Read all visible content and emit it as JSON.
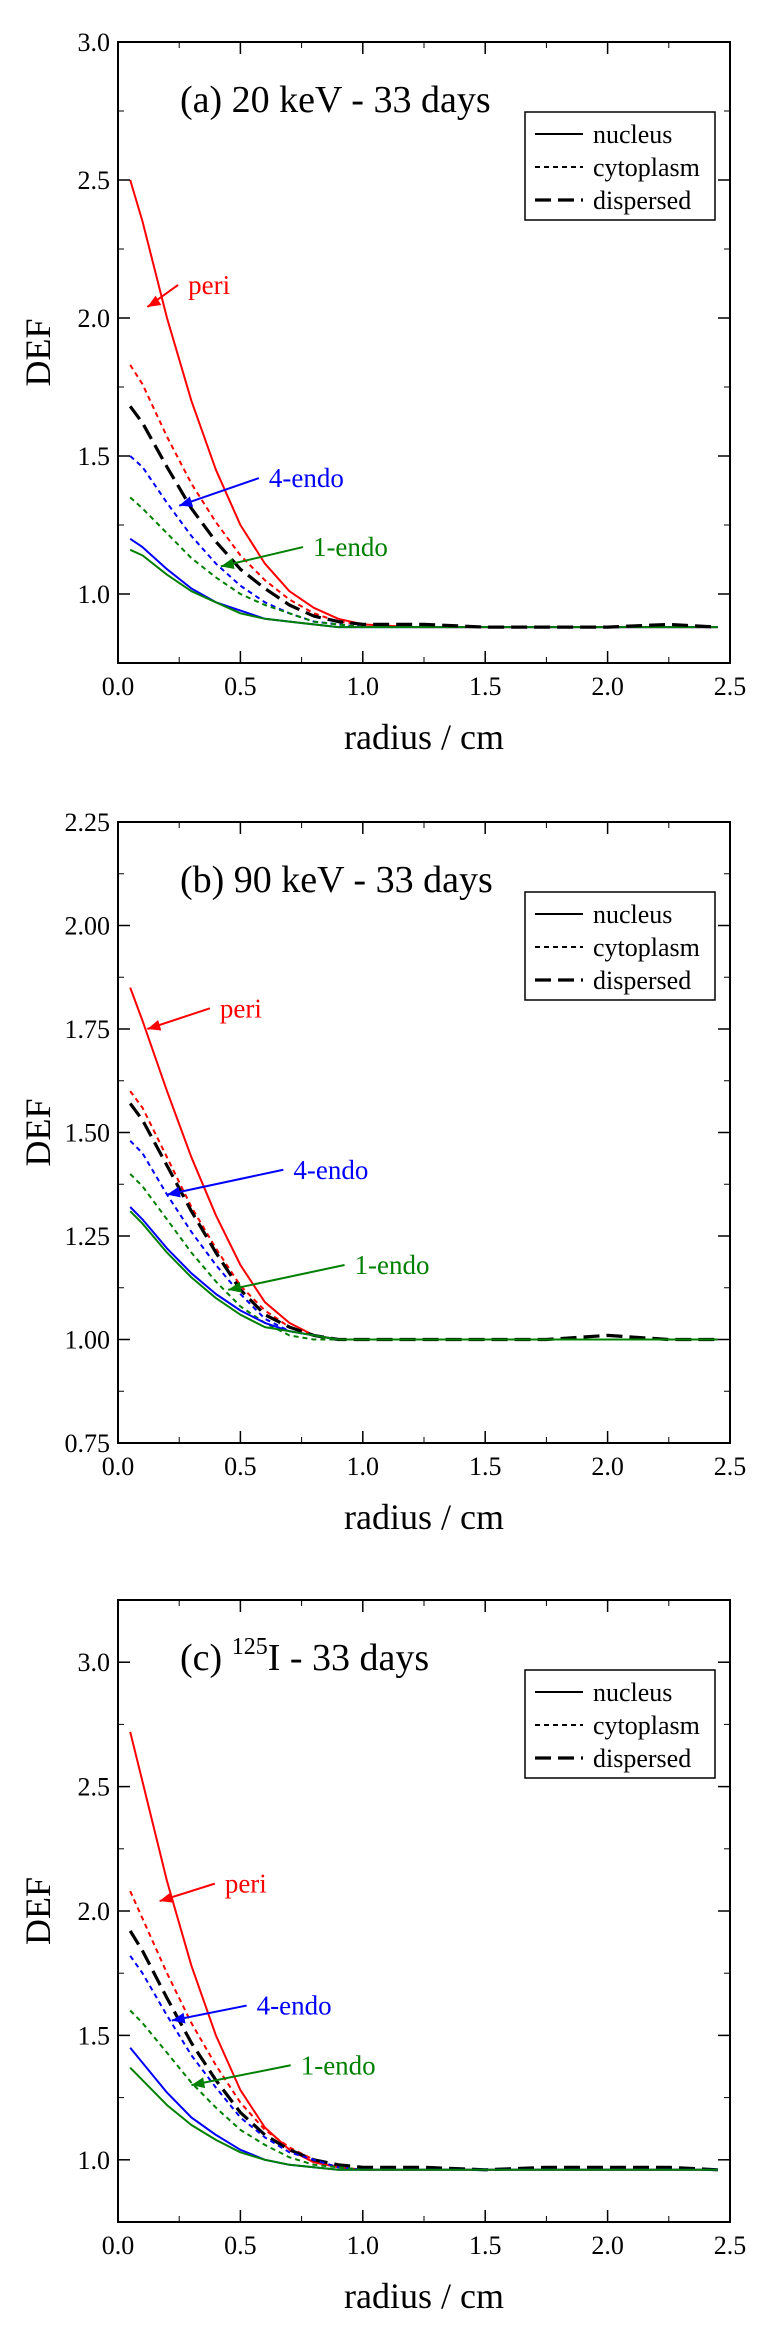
{
  "colors": {
    "peri": "#ff0000",
    "endo4": "#0000ff",
    "endo1": "#008000",
    "dispersed": "#000000",
    "frame": "#000000",
    "background": "#ffffff"
  },
  "chart_data": [
    {
      "type": "line",
      "title": "(a) 20 keV - 33 days",
      "title_prefix": "",
      "title_sup": "",
      "title_suffix": "",
      "xlabel": "radius / cm",
      "ylabel": "DEF",
      "xlim": [
        0,
        2.5
      ],
      "ylim": [
        0.75,
        3.0
      ],
      "xticks": [
        "0.0",
        "0.5",
        "1.0",
        "1.5",
        "2.0",
        "2.5"
      ],
      "yticks": [
        "1.0",
        "1.5",
        "2.0",
        "2.5",
        "3.0"
      ],
      "legend": {
        "position": "top-right",
        "entries": [
          "nucleus",
          "cytoplasm",
          "dispersed"
        ],
        "styles": [
          "solid",
          "dotted",
          "dashed"
        ]
      },
      "annotations": [
        {
          "text": "peri",
          "color": "peri",
          "at": [
            0.27,
            2.12
          ],
          "to": [
            0.12,
            2.04
          ]
        },
        {
          "text": "4-endo",
          "color": "endo4",
          "at": [
            0.6,
            1.42
          ],
          "to": [
            0.25,
            1.32
          ]
        },
        {
          "text": "1-endo",
          "color": "endo1",
          "at": [
            0.78,
            1.17
          ],
          "to": [
            0.42,
            1.1
          ]
        }
      ],
      "series": [
        {
          "name": "peri nucleus",
          "color": "peri",
          "style": "solid",
          "x": [
            0.05,
            0.1,
            0.2,
            0.3,
            0.4,
            0.5,
            0.6,
            0.7,
            0.8,
            0.9,
            1.0,
            1.2,
            1.5,
            2.0,
            2.45
          ],
          "y": [
            2.5,
            2.35,
            2.0,
            1.7,
            1.45,
            1.25,
            1.11,
            1.01,
            0.95,
            0.91,
            0.89,
            0.88,
            0.88,
            0.88,
            0.88
          ]
        },
        {
          "name": "peri cytoplasm",
          "color": "peri",
          "style": "dotted",
          "x": [
            0.05,
            0.1,
            0.2,
            0.3,
            0.4,
            0.5,
            0.6,
            0.7,
            0.8,
            0.9,
            1.0
          ],
          "y": [
            1.83,
            1.76,
            1.57,
            1.4,
            1.26,
            1.14,
            1.05,
            0.98,
            0.93,
            0.9,
            0.89
          ]
        },
        {
          "name": "4-endo cytoplasm",
          "color": "endo4",
          "style": "dotted",
          "x": [
            0.05,
            0.1,
            0.2,
            0.3,
            0.4,
            0.5,
            0.6,
            0.7,
            0.8,
            0.9,
            1.0
          ],
          "y": [
            1.5,
            1.46,
            1.33,
            1.21,
            1.11,
            1.03,
            0.97,
            0.93,
            0.9,
            0.89,
            0.88
          ]
        },
        {
          "name": "1-endo cytoplasm",
          "color": "endo1",
          "style": "dotted",
          "x": [
            0.05,
            0.1,
            0.2,
            0.3,
            0.4,
            0.5,
            0.6,
            0.7,
            0.8,
            0.9,
            1.0
          ],
          "y": [
            1.35,
            1.31,
            1.22,
            1.13,
            1.06,
            1.0,
            0.96,
            0.93,
            0.9,
            0.89,
            0.88
          ]
        },
        {
          "name": "4-endo nucleus",
          "color": "endo4",
          "style": "solid",
          "x": [
            0.05,
            0.1,
            0.2,
            0.3,
            0.4,
            0.5,
            0.6,
            0.7,
            0.8,
            0.9,
            1.0,
            1.5,
            2.0,
            2.45
          ],
          "y": [
            1.2,
            1.17,
            1.09,
            1.02,
            0.97,
            0.94,
            0.91,
            0.9,
            0.89,
            0.88,
            0.88,
            0.88,
            0.88,
            0.88
          ]
        },
        {
          "name": "1-endo nucleus",
          "color": "endo1",
          "style": "solid",
          "x": [
            0.05,
            0.1,
            0.2,
            0.3,
            0.4,
            0.5,
            0.6,
            0.7,
            0.8,
            0.9,
            1.0,
            1.5,
            2.0,
            2.45
          ],
          "y": [
            1.16,
            1.14,
            1.07,
            1.01,
            0.97,
            0.93,
            0.91,
            0.9,
            0.89,
            0.88,
            0.88,
            0.88,
            0.88,
            0.88
          ]
        },
        {
          "name": "dispersed",
          "color": "dispersed",
          "style": "dashed",
          "x": [
            0.05,
            0.1,
            0.2,
            0.3,
            0.4,
            0.5,
            0.6,
            0.7,
            0.8,
            0.9,
            1.0,
            1.25,
            1.5,
            1.75,
            2.0,
            2.25,
            2.45
          ],
          "y": [
            1.68,
            1.62,
            1.46,
            1.31,
            1.19,
            1.09,
            1.02,
            0.96,
            0.92,
            0.9,
            0.89,
            0.89,
            0.88,
            0.88,
            0.88,
            0.89,
            0.88
          ]
        }
      ]
    },
    {
      "type": "line",
      "title": "(b) 90 keV - 33 days",
      "title_prefix": "",
      "title_sup": "",
      "title_suffix": "",
      "xlabel": "radius / cm",
      "ylabel": "DEF",
      "xlim": [
        0,
        2.5
      ],
      "ylim": [
        0.75,
        2.25
      ],
      "xticks": [
        "0.0",
        "0.5",
        "1.0",
        "1.5",
        "2.0",
        "2.5"
      ],
      "yticks": [
        "0.75",
        "1.00",
        "1.25",
        "1.50",
        "1.75",
        "2.00",
        "2.25"
      ],
      "legend": {
        "position": "top-right",
        "entries": [
          "nucleus",
          "cytoplasm",
          "dispersed"
        ],
        "styles": [
          "solid",
          "dotted",
          "dashed"
        ]
      },
      "annotations": [
        {
          "text": "peri",
          "color": "peri",
          "at": [
            0.4,
            1.8
          ],
          "to": [
            0.12,
            1.75
          ]
        },
        {
          "text": "4-endo",
          "color": "endo4",
          "at": [
            0.7,
            1.41
          ],
          "to": [
            0.2,
            1.35
          ]
        },
        {
          "text": "1-endo",
          "color": "endo1",
          "at": [
            0.95,
            1.18
          ],
          "to": [
            0.45,
            1.12
          ]
        }
      ],
      "series": [
        {
          "name": "peri nucleus",
          "color": "peri",
          "style": "solid",
          "x": [
            0.05,
            0.1,
            0.2,
            0.3,
            0.4,
            0.5,
            0.6,
            0.7,
            0.8,
            0.9,
            1.0,
            1.5,
            2.0,
            2.45
          ],
          "y": [
            1.85,
            1.77,
            1.6,
            1.44,
            1.3,
            1.18,
            1.09,
            1.04,
            1.01,
            1.0,
            1.0,
            1.0,
            1.0,
            1.0
          ]
        },
        {
          "name": "peri cytoplasm",
          "color": "peri",
          "style": "dotted",
          "x": [
            0.05,
            0.1,
            0.2,
            0.3,
            0.4,
            0.5,
            0.6,
            0.7,
            0.8,
            0.9,
            1.0
          ],
          "y": [
            1.6,
            1.56,
            1.44,
            1.32,
            1.22,
            1.13,
            1.07,
            1.03,
            1.01,
            1.0,
            1.0
          ]
        },
        {
          "name": "dispersed",
          "color": "dispersed",
          "style": "dashed",
          "x": [
            0.05,
            0.1,
            0.2,
            0.3,
            0.4,
            0.5,
            0.6,
            0.7,
            0.8,
            0.9,
            1.0,
            1.25,
            1.5,
            1.75,
            2.0,
            2.25,
            2.45
          ],
          "y": [
            1.57,
            1.53,
            1.42,
            1.31,
            1.21,
            1.12,
            1.06,
            1.03,
            1.01,
            1.0,
            1.0,
            1.0,
            1.0,
            1.0,
            1.01,
            1.0,
            1.0
          ]
        },
        {
          "name": "4-endo cytoplasm",
          "color": "endo4",
          "style": "dotted",
          "x": [
            0.05,
            0.1,
            0.2,
            0.3,
            0.4,
            0.5,
            0.6,
            0.7,
            0.8,
            0.9,
            1.0
          ],
          "y": [
            1.48,
            1.45,
            1.35,
            1.26,
            1.18,
            1.11,
            1.05,
            1.02,
            1.01,
            1.0,
            1.0
          ]
        },
        {
          "name": "1-endo cytoplasm",
          "color": "endo1",
          "style": "dotted",
          "x": [
            0.05,
            0.1,
            0.2,
            0.3,
            0.4,
            0.5,
            0.6,
            0.7,
            0.8,
            0.9,
            1.0
          ],
          "y": [
            1.4,
            1.37,
            1.29,
            1.21,
            1.14,
            1.08,
            1.04,
            1.01,
            1.0,
            1.0,
            1.0
          ]
        },
        {
          "name": "4-endo nucleus",
          "color": "endo4",
          "style": "solid",
          "x": [
            0.05,
            0.1,
            0.2,
            0.3,
            0.4,
            0.5,
            0.6,
            0.7,
            0.8,
            0.9,
            1.0,
            1.5,
            2.0,
            2.45
          ],
          "y": [
            1.32,
            1.29,
            1.22,
            1.16,
            1.11,
            1.07,
            1.04,
            1.02,
            1.01,
            1.0,
            1.0,
            1.0,
            1.0,
            1.0
          ]
        },
        {
          "name": "1-endo nucleus",
          "color": "endo1",
          "style": "solid",
          "x": [
            0.05,
            0.1,
            0.2,
            0.3,
            0.4,
            0.5,
            0.6,
            0.7,
            0.8,
            0.9,
            1.0,
            1.5,
            2.0,
            2.45
          ],
          "y": [
            1.31,
            1.28,
            1.21,
            1.15,
            1.1,
            1.06,
            1.03,
            1.02,
            1.01,
            1.0,
            1.0,
            1.0,
            1.0,
            1.0
          ]
        }
      ]
    },
    {
      "type": "line",
      "title": "(c) 125I - 33 days",
      "title_prefix": "(c) ",
      "title_sup": "125",
      "title_suffix": "I - 33 days",
      "xlabel": "radius / cm",
      "ylabel": "DEF",
      "xlim": [
        0,
        2.5
      ],
      "ylim": [
        0.75,
        3.25
      ],
      "xticks": [
        "0.0",
        "0.5",
        "1.0",
        "1.5",
        "2.0",
        "2.5"
      ],
      "yticks": [
        "1.0",
        "1.5",
        "2.0",
        "2.5",
        "3.0"
      ],
      "legend": {
        "position": "top-right",
        "entries": [
          "nucleus",
          "cytoplasm",
          "dispersed"
        ],
        "styles": [
          "solid",
          "dotted",
          "dashed"
        ]
      },
      "annotations": [
        {
          "text": "peri",
          "color": "peri",
          "at": [
            0.42,
            2.11
          ],
          "to": [
            0.17,
            2.04
          ]
        },
        {
          "text": "4-endo",
          "color": "endo4",
          "at": [
            0.55,
            1.62
          ],
          "to": [
            0.22,
            1.56
          ]
        },
        {
          "text": "1-endo",
          "color": "endo1",
          "at": [
            0.73,
            1.38
          ],
          "to": [
            0.3,
            1.3
          ]
        }
      ],
      "series": [
        {
          "name": "peri nucleus",
          "color": "peri",
          "style": "solid",
          "x": [
            0.05,
            0.1,
            0.2,
            0.3,
            0.4,
            0.5,
            0.6,
            0.7,
            0.8,
            0.9,
            1.0,
            1.5,
            2.0,
            2.45
          ],
          "y": [
            2.72,
            2.52,
            2.12,
            1.78,
            1.5,
            1.28,
            1.13,
            1.04,
            0.99,
            0.97,
            0.96,
            0.96,
            0.96,
            0.96
          ]
        },
        {
          "name": "peri cytoplasm",
          "color": "peri",
          "style": "dotted",
          "x": [
            0.05,
            0.1,
            0.2,
            0.3,
            0.4,
            0.5,
            0.6,
            0.7,
            0.8,
            0.9,
            1.0
          ],
          "y": [
            2.08,
            1.97,
            1.75,
            1.55,
            1.38,
            1.23,
            1.12,
            1.05,
            1.0,
            0.97,
            0.96
          ]
        },
        {
          "name": "dispersed",
          "color": "dispersed",
          "style": "dashed",
          "x": [
            0.05,
            0.1,
            0.2,
            0.3,
            0.4,
            0.5,
            0.6,
            0.7,
            0.8,
            0.9,
            1.0,
            1.25,
            1.5,
            1.75,
            2.0,
            2.25,
            2.45
          ],
          "y": [
            1.92,
            1.84,
            1.65,
            1.47,
            1.32,
            1.19,
            1.1,
            1.04,
            1.0,
            0.98,
            0.97,
            0.97,
            0.96,
            0.97,
            0.97,
            0.97,
            0.96
          ]
        },
        {
          "name": "4-endo cytoplasm",
          "color": "endo4",
          "style": "dotted",
          "x": [
            0.05,
            0.1,
            0.2,
            0.3,
            0.4,
            0.5,
            0.6,
            0.7,
            0.8,
            0.9,
            1.0
          ],
          "y": [
            1.82,
            1.75,
            1.58,
            1.42,
            1.29,
            1.17,
            1.09,
            1.03,
            1.0,
            0.97,
            0.96
          ]
        },
        {
          "name": "1-endo cytoplasm",
          "color": "endo1",
          "style": "dotted",
          "x": [
            0.05,
            0.1,
            0.2,
            0.3,
            0.4,
            0.5,
            0.6,
            0.7,
            0.8,
            0.9,
            1.0
          ],
          "y": [
            1.6,
            1.55,
            1.43,
            1.31,
            1.21,
            1.12,
            1.06,
            1.01,
            0.98,
            0.97,
            0.96
          ]
        },
        {
          "name": "4-endo nucleus",
          "color": "endo4",
          "style": "solid",
          "x": [
            0.05,
            0.1,
            0.2,
            0.3,
            0.4,
            0.5,
            0.6,
            0.7,
            0.8,
            0.9,
            1.0,
            1.5,
            2.0,
            2.45
          ],
          "y": [
            1.45,
            1.39,
            1.27,
            1.17,
            1.1,
            1.04,
            1.0,
            0.98,
            0.97,
            0.96,
            0.96,
            0.96,
            0.96,
            0.96
          ]
        },
        {
          "name": "1-endo nucleus",
          "color": "endo1",
          "style": "solid",
          "x": [
            0.05,
            0.1,
            0.2,
            0.3,
            0.4,
            0.5,
            0.6,
            0.7,
            0.8,
            0.9,
            1.0,
            1.5,
            2.0,
            2.45
          ],
          "y": [
            1.37,
            1.32,
            1.22,
            1.14,
            1.08,
            1.03,
            1.0,
            0.98,
            0.97,
            0.96,
            0.96,
            0.96,
            0.96,
            0.96
          ]
        }
      ]
    }
  ]
}
